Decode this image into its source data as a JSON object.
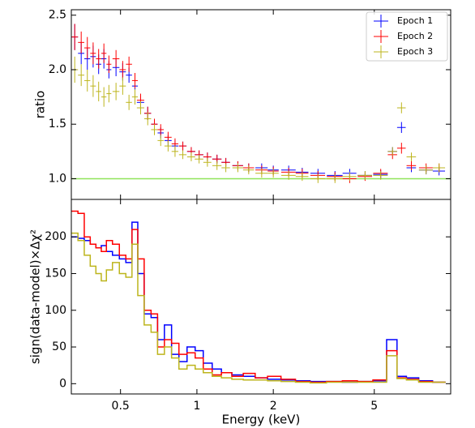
{
  "chart_data": [
    {
      "type": "errorbar",
      "ylabel": "ratio",
      "xlog": true,
      "xlim": [
        0.32,
        10
      ],
      "ylim": [
        0.81,
        2.55
      ],
      "yticks": [
        {
          "value": 1,
          "label": "1.0"
        },
        1.5,
        {
          "value": 2,
          "label": "2.0"
        },
        2.5
      ],
      "hline": {
        "value": 1,
        "color": "#8fe35a"
      },
      "legend": "upper right",
      "x": [
        0.33,
        0.35,
        0.37,
        0.39,
        0.41,
        0.43,
        0.45,
        0.48,
        0.51,
        0.54,
        0.57,
        0.6,
        0.64,
        0.68,
        0.72,
        0.77,
        0.82,
        0.88,
        0.95,
        1.02,
        1.1,
        1.2,
        1.3,
        1.45,
        1.6,
        1.8,
        2.0,
        2.3,
        2.6,
        3.0,
        3.5,
        4.0,
        4.6,
        5.3,
        5.9,
        6.4,
        7.0,
        8.0,
        9.0
      ],
      "xerr": [
        0.01,
        0.01,
        0.01,
        0.01,
        0.01,
        0.01,
        0.01,
        0.015,
        0.015,
        0.015,
        0.015,
        0.02,
        0.02,
        0.02,
        0.02,
        0.025,
        0.025,
        0.03,
        0.035,
        0.04,
        0.04,
        0.05,
        0.05,
        0.07,
        0.08,
        0.1,
        0.1,
        0.15,
        0.15,
        0.2,
        0.25,
        0.25,
        0.3,
        0.35,
        0.25,
        0.25,
        0.3,
        0.5,
        0.5
      ],
      "series": [
        {
          "name": "Epoch 1",
          "color": "#0000ff",
          "values": [
            2.3,
            2.15,
            2.1,
            2.12,
            2.05,
            2.1,
            2.0,
            2.02,
            1.98,
            1.95,
            1.85,
            1.7,
            1.6,
            1.5,
            1.42,
            1.35,
            1.3,
            1.3,
            1.25,
            1.22,
            1.2,
            1.18,
            1.15,
            1.12,
            1.1,
            1.1,
            1.08,
            1.08,
            1.06,
            1.05,
            1.03,
            1.05,
            1.03,
            1.04,
            1.25,
            1.47,
            1.1,
            1.08,
            1.07
          ],
          "errors": [
            0.12,
            0.1,
            0.1,
            0.1,
            0.09,
            0.09,
            0.08,
            0.08,
            0.08,
            0.07,
            0.07,
            0.06,
            0.06,
            0.05,
            0.05,
            0.05,
            0.05,
            0.04,
            0.04,
            0.04,
            0.04,
            0.04,
            0.04,
            0.04,
            0.04,
            0.04,
            0.04,
            0.04,
            0.04,
            0.04,
            0.04,
            0.04,
            0.04,
            0.04,
            0.04,
            0.05,
            0.04,
            0.04,
            0.04
          ]
        },
        {
          "name": "Epoch 2",
          "color": "#ff0000",
          "values": [
            2.3,
            2.25,
            2.2,
            2.15,
            2.1,
            2.15,
            2.05,
            2.1,
            2.0,
            2.05,
            1.9,
            1.72,
            1.6,
            1.5,
            1.45,
            1.38,
            1.32,
            1.3,
            1.25,
            1.22,
            1.2,
            1.18,
            1.15,
            1.12,
            1.1,
            1.08,
            1.07,
            1.06,
            1.05,
            1.03,
            1.02,
            1.0,
            1.02,
            1.05,
            1.22,
            1.28,
            1.12,
            1.1,
            1.1
          ],
          "errors": [
            0.12,
            0.1,
            0.1,
            0.1,
            0.09,
            0.09,
            0.08,
            0.08,
            0.08,
            0.07,
            0.07,
            0.06,
            0.06,
            0.05,
            0.05,
            0.05,
            0.05,
            0.04,
            0.04,
            0.04,
            0.04,
            0.04,
            0.04,
            0.04,
            0.04,
            0.04,
            0.04,
            0.04,
            0.04,
            0.04,
            0.04,
            0.04,
            0.04,
            0.04,
            0.04,
            0.05,
            0.04,
            0.04,
            0.04
          ]
        },
        {
          "name": "Epoch 3",
          "color": "#bdb51c",
          "values": [
            2.0,
            1.95,
            1.9,
            1.85,
            1.8,
            1.75,
            1.78,
            1.8,
            1.85,
            1.7,
            1.75,
            1.65,
            1.55,
            1.45,
            1.35,
            1.3,
            1.25,
            1.22,
            1.2,
            1.18,
            1.15,
            1.12,
            1.1,
            1.1,
            1.08,
            1.05,
            1.05,
            1.03,
            1.02,
            1.0,
            1.0,
            1.02,
            1.03,
            1.03,
            1.25,
            1.65,
            1.2,
            1.08,
            1.1
          ],
          "errors": [
            0.12,
            0.1,
            0.1,
            0.1,
            0.09,
            0.09,
            0.08,
            0.08,
            0.08,
            0.07,
            0.07,
            0.06,
            0.06,
            0.05,
            0.05,
            0.05,
            0.05,
            0.04,
            0.04,
            0.04,
            0.04,
            0.04,
            0.04,
            0.04,
            0.04,
            0.04,
            0.04,
            0.04,
            0.04,
            0.04,
            0.04,
            0.04,
            0.04,
            0.04,
            0.04,
            0.05,
            0.04,
            0.04,
            0.04
          ]
        }
      ]
    },
    {
      "type": "step",
      "xlabel": "Energy (keV)",
      "ylabel": "sign(data-model)×Δχ²",
      "xlog": true,
      "xlim": [
        0.32,
        10
      ],
      "xticks": [
        0.5,
        1,
        2,
        5
      ],
      "ylim": [
        -14,
        251
      ],
      "yticks": [
        0,
        50,
        100,
        150,
        200
      ],
      "x": [
        0.33,
        0.35,
        0.37,
        0.39,
        0.41,
        0.43,
        0.45,
        0.48,
        0.51,
        0.54,
        0.57,
        0.6,
        0.64,
        0.68,
        0.72,
        0.77,
        0.82,
        0.88,
        0.95,
        1.02,
        1.1,
        1.2,
        1.3,
        1.45,
        1.6,
        1.8,
        2.0,
        2.3,
        2.6,
        3.0,
        3.5,
        4.0,
        4.6,
        5.3,
        5.9,
        6.4,
        7.0,
        8.0,
        9.0
      ],
      "series": [
        {
          "name": "Epoch 1",
          "color": "#0000ff",
          "values": [
            200,
            198,
            195,
            190,
            185,
            188,
            180,
            175,
            170,
            165,
            220,
            150,
            95,
            90,
            60,
            80,
            40,
            30,
            50,
            45,
            28,
            20,
            15,
            12,
            10,
            8,
            6,
            5,
            4,
            3,
            3,
            2,
            3,
            4,
            60,
            10,
            8,
            4,
            2
          ]
        },
        {
          "name": "Epoch 2",
          "color": "#ff0000",
          "values": [
            235,
            232,
            200,
            190,
            185,
            180,
            195,
            190,
            175,
            170,
            210,
            170,
            100,
            95,
            50,
            60,
            55,
            40,
            42,
            35,
            20,
            12,
            15,
            10,
            14,
            8,
            10,
            6,
            3,
            2,
            3,
            4,
            3,
            5,
            45,
            8,
            6,
            3,
            2
          ]
        },
        {
          "name": "Epoch 3",
          "color": "#bdb51c",
          "values": [
            205,
            195,
            175,
            160,
            150,
            140,
            155,
            165,
            150,
            145,
            190,
            120,
            80,
            70,
            40,
            50,
            35,
            20,
            25,
            20,
            15,
            10,
            8,
            6,
            5,
            5,
            4,
            3,
            2,
            1,
            2,
            2,
            2,
            2,
            38,
            7,
            5,
            2,
            2
          ]
        }
      ]
    }
  ]
}
